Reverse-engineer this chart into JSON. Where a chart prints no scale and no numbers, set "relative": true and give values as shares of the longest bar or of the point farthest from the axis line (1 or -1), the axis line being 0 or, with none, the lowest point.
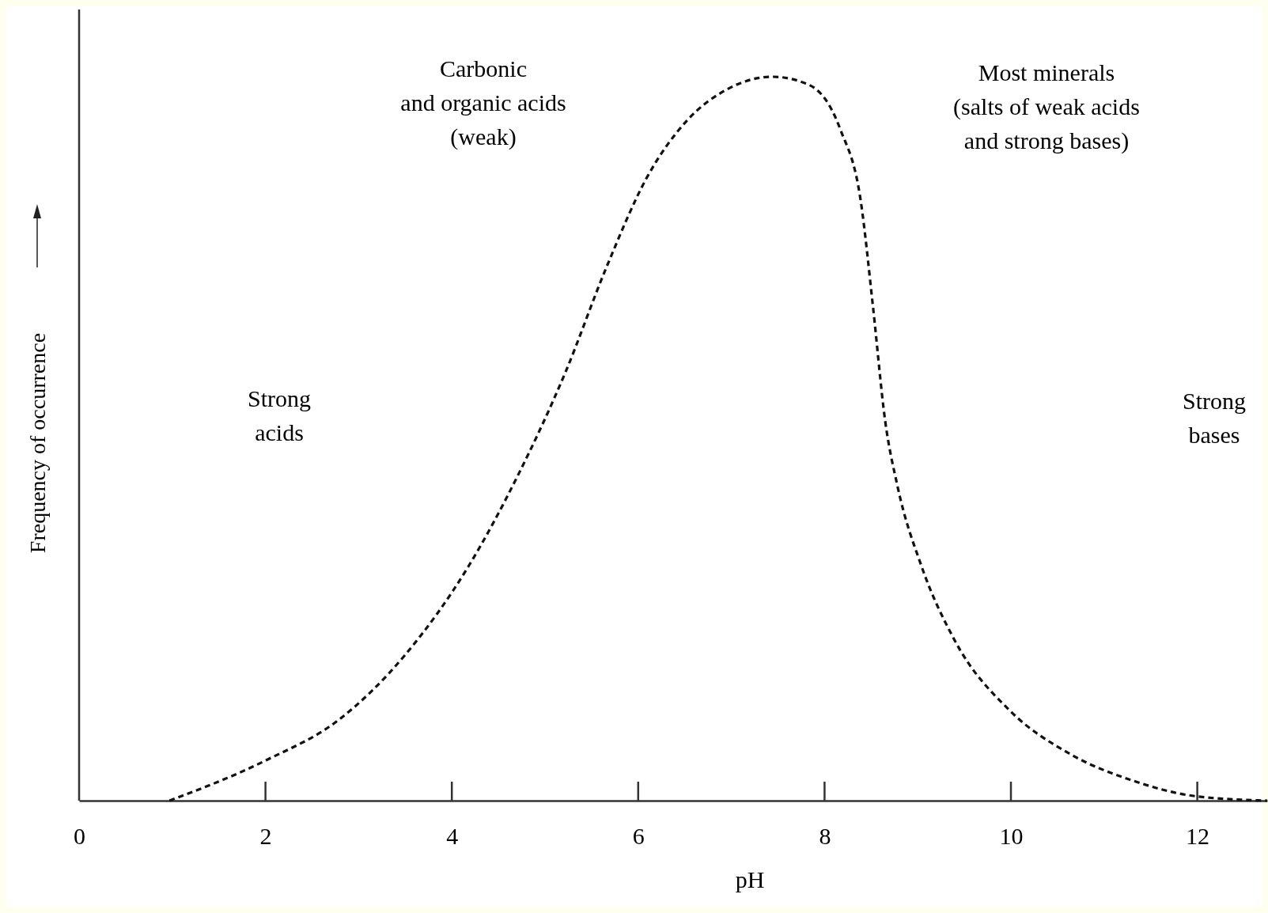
{
  "chart_data": {
    "type": "line",
    "relative": true,
    "xlabel": "pH",
    "ylabel": "Frequency of occurrence",
    "xlim": [
      0,
      12.75
    ],
    "xticks": [
      0,
      2,
      4,
      6,
      8,
      10,
      12
    ],
    "line_style": "dashed",
    "marker": "none",
    "grid": false,
    "x": [
      0.97,
      2.01,
      2.79,
      3.49,
      4.18,
      4.7,
      5.22,
      5.66,
      6.09,
      6.52,
      6.96,
      7.44,
      7.83,
      8.17,
      8.39,
      8.52,
      8.65,
      8.78,
      9.04,
      9.39,
      10.0,
      10.6,
      11.3,
      11.99,
      12.75
    ],
    "series": [
      {
        "color": "#111111",
        "values": [
          0,
          0.056,
          0.112,
          0.2,
          0.324,
          0.447,
          0.592,
          0.737,
          0.86,
          0.939,
          0.983,
          1.0,
          0.989,
          0.927,
          0.827,
          0.682,
          0.525,
          0.436,
          0.324,
          0.223,
          0.123,
          0.067,
          0.028,
          0.006,
          0
        ]
      }
    ],
    "annotations": [
      "Carbonic\nand organic acids\n(weak)",
      "Most minerals\n(salts of weak acids\nand strong bases)",
      "Strong\nacids",
      "Strong\nbases"
    ]
  }
}
